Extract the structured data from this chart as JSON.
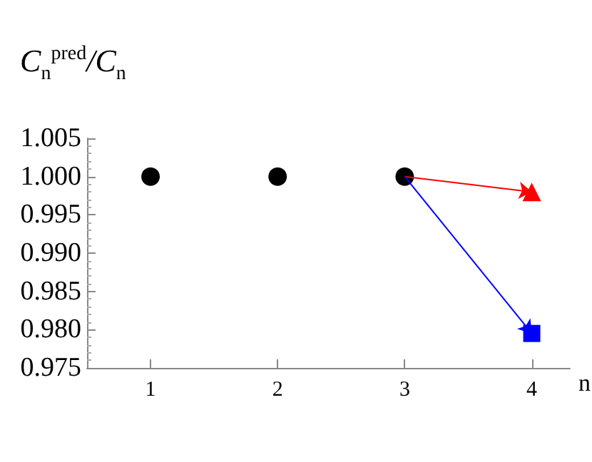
{
  "chart_data": {
    "type": "scatter",
    "xlabel": "n",
    "ylabel": "C$_{n}$$^{pred}$/C$_{n}$",
    "xlim": [
      0.5,
      4.3
    ],
    "xticks": [
      1,
      2,
      3,
      4
    ],
    "ylim": [
      0.975,
      1.005
    ],
    "yticks": [
      0.975,
      {
        "value": 0.98,
        "label": "0.980"
      },
      0.985,
      {
        "value": 0.99,
        "label": "0.990"
      },
      0.995,
      {
        "value": 1.0,
        "label": "1.000"
      },
      1.005
    ],
    "grid": false,
    "series": [
      {
        "color": "#000000",
        "marker": "circle",
        "x": [
          1,
          2,
          3
        ],
        "values": [
          1.0,
          1.0,
          1.0
        ]
      },
      {
        "color": "#ff0000",
        "marker": "triangle",
        "x": [
          4
        ],
        "values": [
          0.998
        ]
      },
      {
        "color": "#0000ff",
        "marker": "square",
        "x": [
          4
        ],
        "values": [
          0.9795
        ]
      }
    ]
  }
}
